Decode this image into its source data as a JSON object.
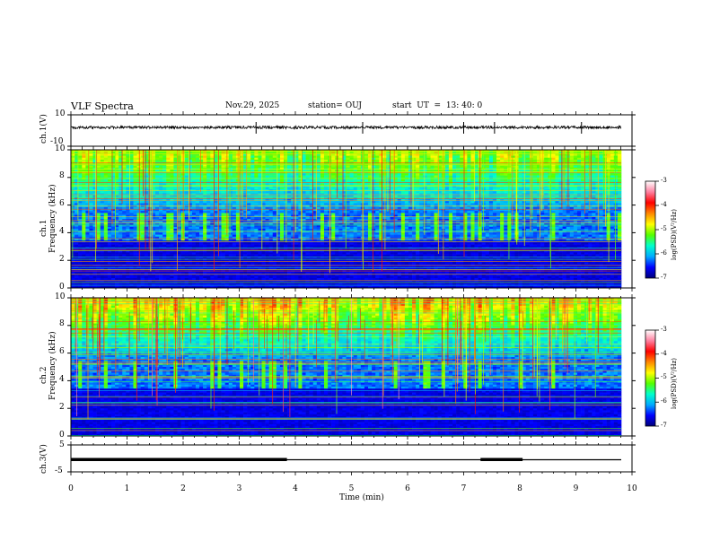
{
  "header": {
    "title": "VLF Spectra",
    "date": "Nov.29, 2025",
    "station": "station= OUJ",
    "start": "start  UT  =  13: 40: 0"
  },
  "colors": {
    "spectrum_stops": [
      "#00007a",
      "#0000ff",
      "#00aaff",
      "#00ffcc",
      "#55ff00",
      "#ffff00",
      "#ff8800",
      "#ff0000",
      "#ff80a0",
      "#ffffff"
    ]
  },
  "chart_data": [
    {
      "type": "line",
      "id": "ch1-waveform",
      "ylabel": "ch.1(V)",
      "ylim": [
        -10,
        10
      ],
      "yticks": [
        "10",
        "-10"
      ],
      "description_values": {
        "baseline": 0,
        "spikes_at_min": [
          3.3,
          5.2,
          7.0,
          7.55,
          9.1
        ]
      }
    },
    {
      "type": "heatmap",
      "id": "ch1-spectrogram",
      "ylabel_line1": "ch.1",
      "ylabel_line2": "Frequency  (kHz)",
      "ylim": [
        0,
        10
      ],
      "yticks": [
        "0",
        "2",
        "4",
        "6",
        "8",
        "10"
      ],
      "xlim": [
        0,
        10
      ],
      "colorbar": {
        "label": "log(PSD)(V²/Hz)",
        "range": [
          -7,
          -3
        ],
        "ticks": [
          "-3",
          "-4",
          "-5",
          "-6",
          "-7"
        ]
      }
    },
    {
      "type": "heatmap",
      "id": "ch2-spectrogram",
      "ylabel_line1": "ch.2",
      "ylabel_line2": "Frequency  (kHz)",
      "ylim": [
        0,
        10
      ],
      "yticks": [
        "0",
        "2",
        "4",
        "6",
        "8",
        "10"
      ],
      "xlim": [
        0,
        10
      ],
      "colorbar": {
        "label": "log(PSD)(V²/Hz)",
        "range": [
          -7,
          -3
        ],
        "ticks": [
          "-3",
          "-4",
          "-5",
          "-6",
          "-7"
        ]
      }
    },
    {
      "type": "line",
      "id": "ch3-signal",
      "ylabel": "ch.3(V)",
      "ylim": [
        -5,
        5
      ],
      "yticks": [
        "5",
        "-5"
      ],
      "segments_min": [
        [
          0,
          3.85
        ],
        [
          7.3,
          8.05
        ]
      ],
      "baseline": 0
    }
  ],
  "xaxis": {
    "label": "Time  (min)",
    "ticks": [
      "0",
      "1",
      "2",
      "3",
      "4",
      "5",
      "6",
      "7",
      "8",
      "9",
      "10"
    ]
  }
}
